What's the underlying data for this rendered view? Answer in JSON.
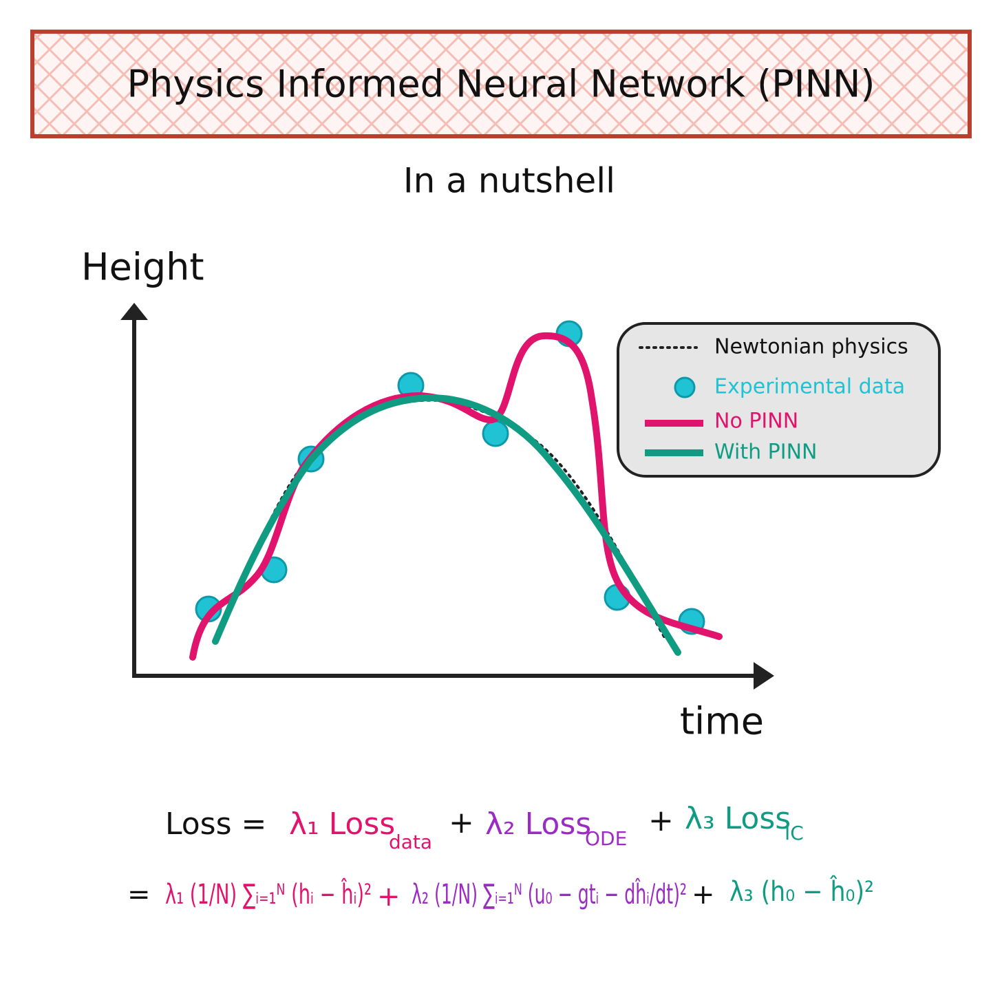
{
  "header": {
    "title": "Physics Informed Neural Network (PINN)",
    "subtitle": "In a nutshell"
  },
  "plot": {
    "y_label": "Height",
    "x_label": "time"
  },
  "legend": {
    "items": [
      "Newtonian physics",
      "Experimental data",
      "No PINN",
      "With PINN"
    ]
  },
  "equation": {
    "line1": {
      "lhs": "Loss =",
      "term1": "λ₁ Loss",
      "term1_sub": "data",
      "plus1": "+",
      "term2": "λ₂ Loss",
      "term2_sub": "ODE",
      "plus2": "+",
      "term3": "λ₃ Loss",
      "term3_sub": "IC"
    },
    "line2": {
      "eq": "=",
      "term1": "λ₁ (1/N) ∑ᵢ₌₁ᴺ (hᵢ − ĥᵢ)²",
      "plus1": "+",
      "term2": "λ₂ (1/N) ∑ᵢ₌₁ᴺ (u₀ − gtᵢ − dĥᵢ/dt)²",
      "plus2": "+",
      "term3": "λ₃ (h₀ − ĥ₀)²"
    }
  }
}
